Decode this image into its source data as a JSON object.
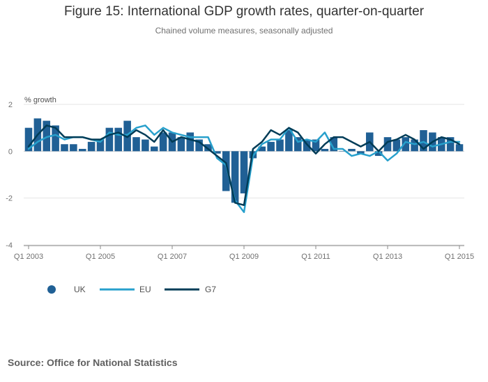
{
  "chart_data": {
    "type": "bar+line",
    "title": "Figure 15: International GDP growth rates, quarter-on-quarter",
    "subtitle": "Chained volume measures, seasonally adjusted",
    "ylabel": "% growth",
    "ylim": [
      -4,
      2
    ],
    "yticks": [
      2,
      0,
      -2,
      -4
    ],
    "grid": true,
    "legend_position": "bottom-left",
    "x_tick_labels": [
      {
        "label": "Q1 2003",
        "index": 0
      },
      {
        "label": "Q1 2005",
        "index": 8
      },
      {
        "label": "Q1 2007",
        "index": 16
      },
      {
        "label": "Q1 2009",
        "index": 24
      },
      {
        "label": "Q1 2011",
        "index": 32
      },
      {
        "label": "Q1 2013",
        "index": 40
      },
      {
        "label": "Q1 2015",
        "index": 48
      }
    ],
    "series": [
      {
        "name": "UK",
        "kind": "bar",
        "color": "#206095",
        "values": [
          1.0,
          1.4,
          1.3,
          1.1,
          0.3,
          0.3,
          0.1,
          0.4,
          0.5,
          1.0,
          1.0,
          1.3,
          0.6,
          0.5,
          0.2,
          0.8,
          0.8,
          0.6,
          0.8,
          0.5,
          0.3,
          -0.1,
          -1.7,
          -2.2,
          -1.8,
          -0.3,
          0.2,
          0.4,
          0.5,
          0.9,
          0.6,
          0.5,
          0.5,
          0.1,
          0.6,
          0.0,
          0.1,
          -0.1,
          0.8,
          -0.2,
          0.6,
          0.5,
          0.6,
          0.5,
          0.9,
          0.8,
          0.6,
          0.6,
          0.3
        ]
      },
      {
        "name": "EU",
        "kind": "line",
        "color": "#27a0cc",
        "values": [
          0.1,
          0.4,
          0.6,
          0.7,
          0.5,
          0.6,
          0.6,
          0.5,
          0.4,
          0.8,
          0.7,
          0.7,
          1.0,
          1.1,
          0.7,
          1.0,
          0.8,
          0.7,
          0.6,
          0.6,
          0.6,
          -0.3,
          -0.6,
          -2.1,
          -2.6,
          -0.2,
          0.3,
          0.5,
          0.5,
          1.0,
          0.4,
          0.5,
          0.4,
          0.8,
          0.1,
          0.1,
          -0.2,
          -0.1,
          -0.2,
          0.0,
          -0.4,
          -0.1,
          0.4,
          0.3,
          0.4,
          0.2,
          0.3,
          0.4,
          0.4
        ]
      },
      {
        "name": "G7",
        "kind": "line",
        "color": "#003c57",
        "values": [
          0.2,
          0.7,
          1.1,
          1.0,
          0.6,
          0.6,
          0.6,
          0.5,
          0.5,
          0.7,
          0.8,
          0.6,
          0.9,
          0.7,
          0.4,
          0.9,
          0.4,
          0.6,
          0.5,
          0.4,
          0.1,
          -0.2,
          -0.5,
          -2.2,
          -2.3,
          0.1,
          0.4,
          0.9,
          0.7,
          1.0,
          0.8,
          0.3,
          -0.1,
          0.3,
          0.6,
          0.6,
          0.4,
          0.2,
          0.4,
          0.0,
          0.4,
          0.5,
          0.7,
          0.5,
          0.1,
          0.4,
          0.6,
          0.5,
          0.3
        ]
      }
    ]
  },
  "source": "Source: Office for National Statistics"
}
